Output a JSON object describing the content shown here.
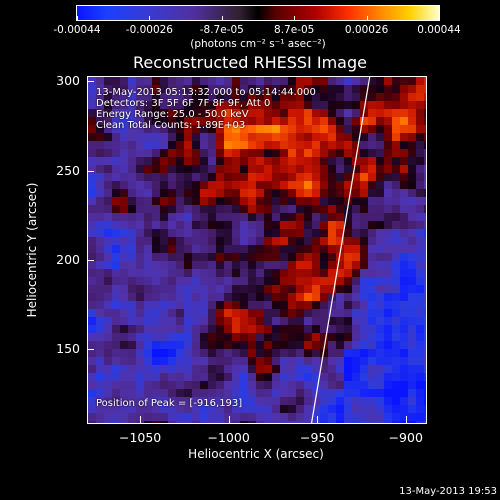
{
  "colorbar": {
    "tick_labels": [
      "-0.00044",
      "-0.00026",
      "-8.7e-05",
      "8.7e-05",
      "0.00026",
      "0.00044"
    ],
    "units": "(photons cm⁻² s⁻¹ asec⁻²)"
  },
  "title": "Reconstructed RHESSI Image",
  "info": {
    "time": "13-May-2013 05:13:32.000 to 05:14:44.000",
    "detectors": "Detectors: 3F 5F 6F 7F 8F 9F, Att 0",
    "energy": "Energy Range: 25.0 - 50.0 keV",
    "clean": "Clean     Total Counts: 1.89E+03",
    "peak": "Position of Peak = [-916,193]"
  },
  "chart_data": {
    "type": "heatmap",
    "title": "Reconstructed RHESSI Image",
    "xlabel": "Heliocentric X (arcsec)",
    "ylabel": "Heliocentric Y (arcsec)",
    "xlim": [
      -1080,
      -888
    ],
    "ylim": [
      108,
      303
    ],
    "x_ticks": [
      -1050,
      -1000,
      -950,
      -900
    ],
    "y_ticks": [
      150,
      200,
      250,
      300
    ],
    "x_tick_labels": [
      "−1050",
      "−1000",
      "−950",
      "−900"
    ],
    "y_tick_labels": [
      "150",
      "200",
      "250",
      "300"
    ],
    "color_range": [
      -0.00044,
      0.00044
    ],
    "peak_position": [
      -916,
      193
    ],
    "limb_line": [
      [
        -920,
        303
      ],
      [
        -953,
        108
      ]
    ]
  },
  "footer": {
    "timestamp": "13-May-2013 19:53"
  }
}
